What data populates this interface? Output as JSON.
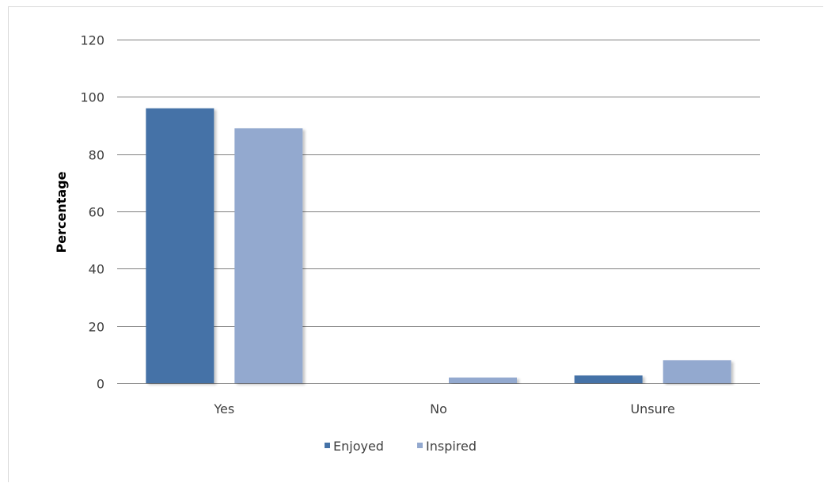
{
  "chart_data": {
    "type": "bar",
    "title": "",
    "xlabel": "",
    "ylabel": "Percentage",
    "ylim": [
      0,
      120
    ],
    "yticks": [
      0,
      20,
      40,
      60,
      80,
      100,
      120
    ],
    "categories": [
      "Yes",
      "No",
      "Unsure"
    ],
    "series": [
      {
        "name": "Enjoyed",
        "values": [
          96,
          0,
          2.7
        ]
      },
      {
        "name": "Inspired",
        "values": [
          89,
          2,
          8
        ]
      }
    ],
    "grid": true,
    "legend_position": "bottom",
    "colors": {
      "Enjoyed": "#4572a7",
      "Inspired": "#93a9cf",
      "grid": "#808080",
      "axis": "#808080"
    }
  }
}
